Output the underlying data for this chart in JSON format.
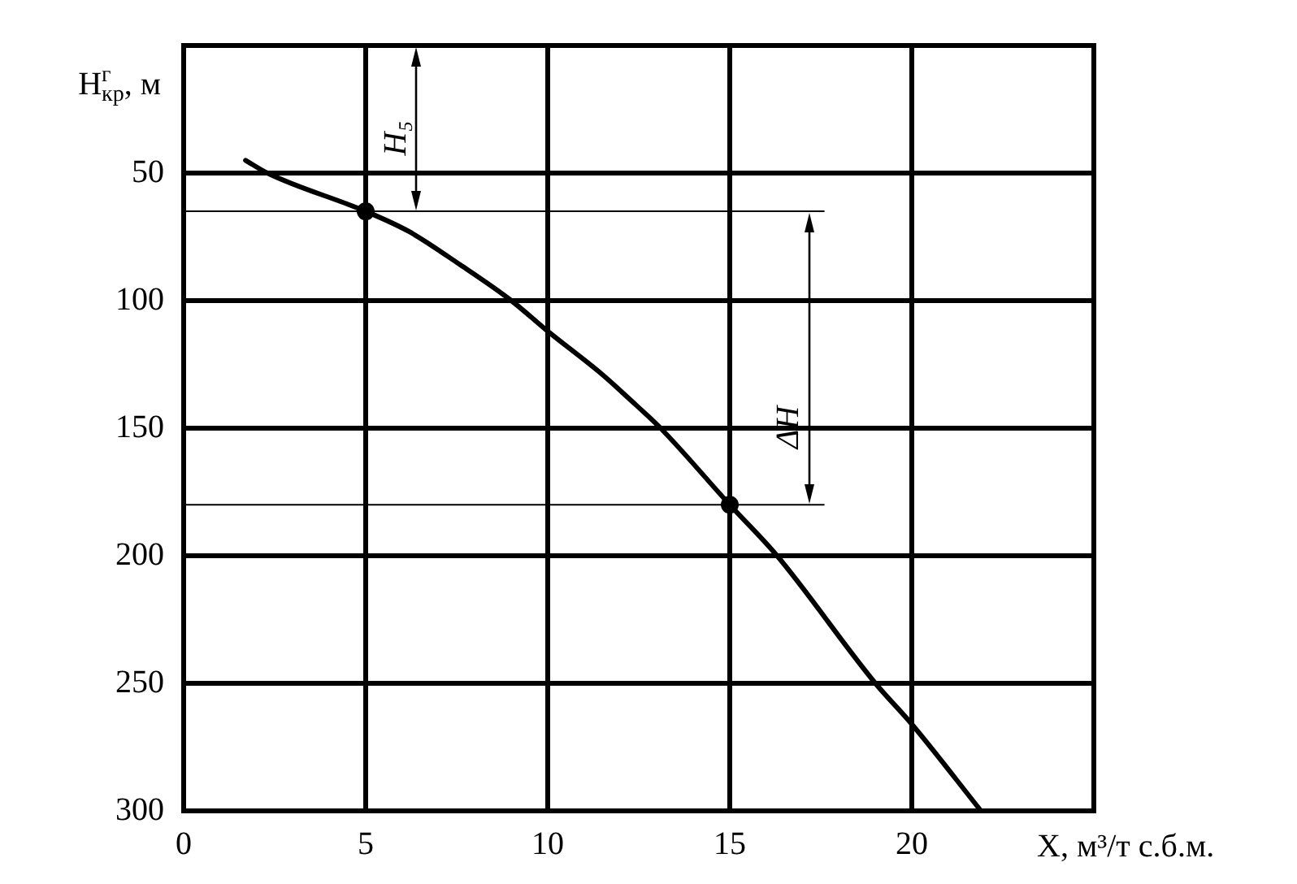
{
  "chart_data": {
    "type": "line",
    "xlabel": "X, м³/т с.б.м.",
    "ylabel": "H$^{г}$$_{кр}$, м",
    "xlim": [
      0,
      25
    ],
    "ylim": [
      300,
      0
    ],
    "xticks": [
      0,
      5,
      10,
      15,
      20
    ],
    "yticks": [
      50,
      100,
      150,
      200,
      250,
      300
    ],
    "grid": true,
    "series": [
      {
        "marker": "none",
        "color": "#000000",
        "x": [
          1.7,
          2.3,
          5,
          6.2,
          7.6,
          9,
          10,
          11.5,
          12.2,
          13.1,
          15,
          16.3,
          19,
          20,
          21.9
        ],
        "values": [
          45,
          50,
          65,
          73,
          86,
          100,
          112,
          129,
          138,
          150,
          180,
          200,
          250,
          266,
          300
        ]
      },
      {
        "type": "scatter",
        "marker": "circle",
        "color": "#000000",
        "x": [
          5,
          15
        ],
        "values": [
          65,
          180
        ]
      }
    ],
    "ref_lines": [
      {
        "axis": "y",
        "value": 65
      },
      {
        "axis": "y",
        "value": 180
      }
    ],
    "annotations": [
      {
        "text": "H₅",
        "x": 6.4,
        "y": 65
      },
      {
        "text": "ΔH",
        "x": 17.2,
        "y": 180
      }
    ]
  }
}
